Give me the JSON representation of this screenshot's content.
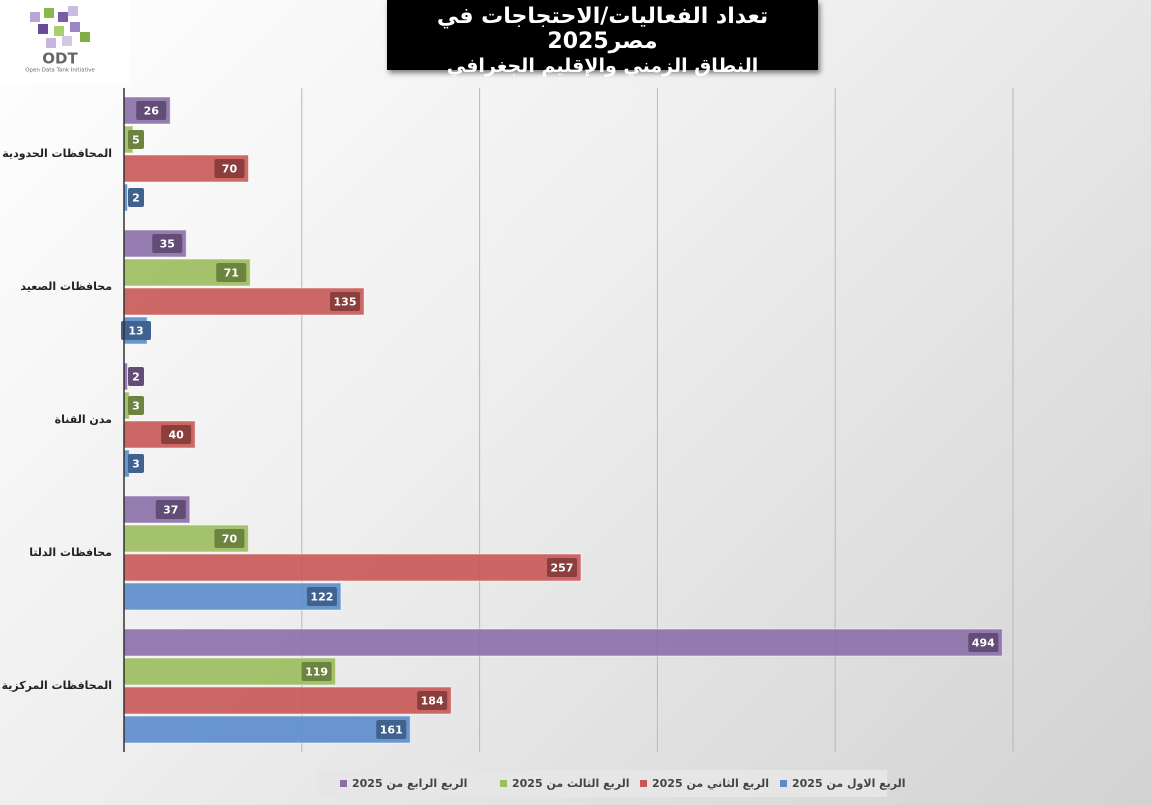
{
  "logo": {
    "title": "ODT",
    "subtitle": "Open Data Tank Initiative"
  },
  "chart_data": {
    "type": "hbar",
    "title": "تعداد الفعاليات/الاحتجاجات في مصر2025",
    "subtitle": "النطاق الزمني والإقليم الجغرافي",
    "categories": [
      "المحافظات الحدودية",
      "محافظات الصعيد",
      "مدن القناة",
      "محافظات الدلتا",
      "المحافظات المركزية"
    ],
    "series": [
      {
        "name": "الربع الاول من 2025",
        "color": "#5a8ccb",
        "values": [
          2,
          13,
          3,
          122,
          161
        ]
      },
      {
        "name": "الربع الثاني من 2025",
        "color": "#c65855",
        "values": [
          70,
          135,
          40,
          257,
          184
        ]
      },
      {
        "name": "الربع الثالث من 2025",
        "color": "#9bbd5c",
        "values": [
          5,
          71,
          3,
          70,
          119
        ]
      },
      {
        "name": "الربع الرابع من 2025",
        "color": "#8a6ea9",
        "values": [
          26,
          35,
          2,
          37,
          494
        ]
      }
    ],
    "xlim": [
      0,
      500
    ],
    "xticks": [
      0,
      100,
      200,
      300,
      400,
      500
    ],
    "grid": true,
    "legend": "bottom"
  }
}
